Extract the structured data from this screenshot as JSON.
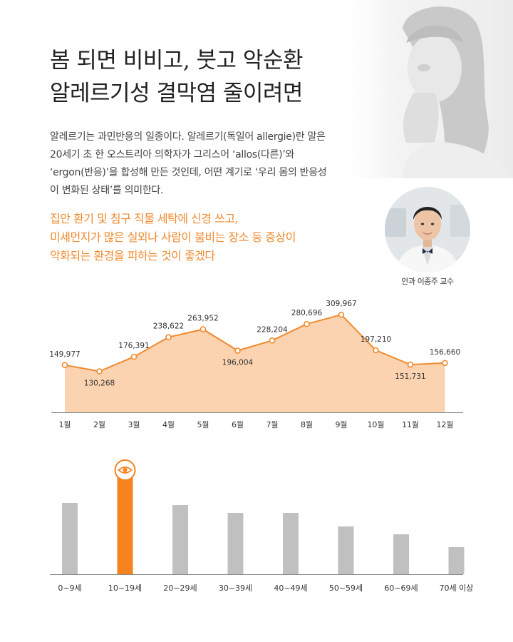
{
  "header": {
    "title_lines": [
      "봄 되면 비비고, 붓고 악순환",
      "알레르기성 결막염 줄이려면"
    ]
  },
  "intro": {
    "text": "알레르기는 과민반응의 일종이다. 알레르기(독일어 allergie)란 말은 20세기 초 한 오스트리아 의학자가 그리스어 ‘allos(다른)’와 ‘ergon(반응)’을 합성해 만든 것인데, 어떤 계기로 ‘우리 몸의 반응성이 변화된 상태’를 의미한다."
  },
  "highlight": {
    "lines": [
      "집안 환기 및 침구 직물 세탁에 신경 쓰고,",
      "미세먼지가 많은 실외나 사람이 붐비는 장소 등 증상이",
      "악화되는 환경을 피하는 것이 좋겠다"
    ]
  },
  "doctor": {
    "caption": "안과 이종주 교수"
  },
  "chart_data": [
    {
      "type": "area",
      "categories": [
        "1월",
        "2월",
        "3월",
        "4월",
        "5월",
        "6월",
        "7월",
        "8월",
        "9월",
        "10월",
        "11월",
        "12월"
      ],
      "values": [
        149977,
        130268,
        176391,
        238622,
        263952,
        196004,
        228204,
        280696,
        309967,
        197210,
        151731,
        156660
      ],
      "value_labels": [
        "149,977",
        "130,268",
        "176,391",
        "238,622",
        "263,952",
        "196,004",
        "228,204",
        "280,696",
        "309,967",
        "197,210",
        "151,731",
        "156,660"
      ],
      "ylim": [
        0,
        340000
      ],
      "grid": false,
      "colors": {
        "line": "#f08a2e",
        "fill": "#fbd3b0"
      }
    },
    {
      "type": "bar",
      "categories": [
        "0~9세",
        "10~19세",
        "20~29세",
        "30~39세",
        "40~49세",
        "50~59세",
        "60~69세",
        "70세 이상"
      ],
      "values": [
        100,
        145,
        97,
        86,
        86,
        67,
        56,
        38
      ],
      "highlight_index": 1,
      "highlight_icon": "eye-icon",
      "ylim": [
        0,
        160
      ],
      "grid": false,
      "colors": {
        "bar": "#c0c0c0",
        "highlight": "#f5831f"
      }
    }
  ]
}
